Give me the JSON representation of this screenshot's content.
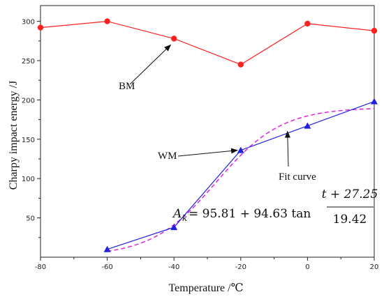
{
  "chart_data": {
    "type": "line",
    "xlabel": "Temperature /℃",
    "ylabel": "Charpy impact energy /J",
    "xlim": [
      -80,
      20
    ],
    "ylim": [
      0,
      320
    ],
    "x_ticks": [
      "-80",
      "-60",
      "-40",
      "-20",
      "0",
      "20"
    ],
    "y_ticks": [
      "50",
      "100",
      "150",
      "200",
      "250",
      "300"
    ],
    "grid": false,
    "series": [
      {
        "name": "BM",
        "color": "#ff2020",
        "marker": "circle",
        "points": [
          {
            "x": -80,
            "y": 292
          },
          {
            "x": -60,
            "y": 300
          },
          {
            "x": -40,
            "y": 278
          },
          {
            "x": -20,
            "y": 245
          },
          {
            "x": 0,
            "y": 297
          },
          {
            "x": 20,
            "y": 288
          }
        ]
      },
      {
        "name": "WM",
        "color": "#2020e0",
        "marker": "triangle",
        "points": [
          {
            "x": -60,
            "y": 10
          },
          {
            "x": -40,
            "y": 38
          },
          {
            "x": -20,
            "y": 136
          },
          {
            "x": 0,
            "y": 167
          },
          {
            "x": 20,
            "y": 198
          }
        ]
      },
      {
        "name": "Fit curve",
        "color": "#e020e0",
        "style": "dashed",
        "formula": {
          "a": 95.81,
          "b": 94.63,
          "c": 27.25,
          "d": 19.42
        }
      }
    ],
    "annotations": [
      {
        "text": "BM",
        "target": {
          "x": -41,
          "y": 270
        }
      },
      {
        "text": "WM",
        "target": {
          "x": -21,
          "y": 136
        }
      },
      {
        "text": "Fit curve",
        "target": {
          "x": -6,
          "y": 160
        }
      }
    ],
    "formula_text": {
      "lhs": "A",
      "lhs_sub": "k",
      "rhs": " = 95.81 + 94.63 tan",
      "numerator": "t + 27.25",
      "denominator": "19.42"
    }
  }
}
